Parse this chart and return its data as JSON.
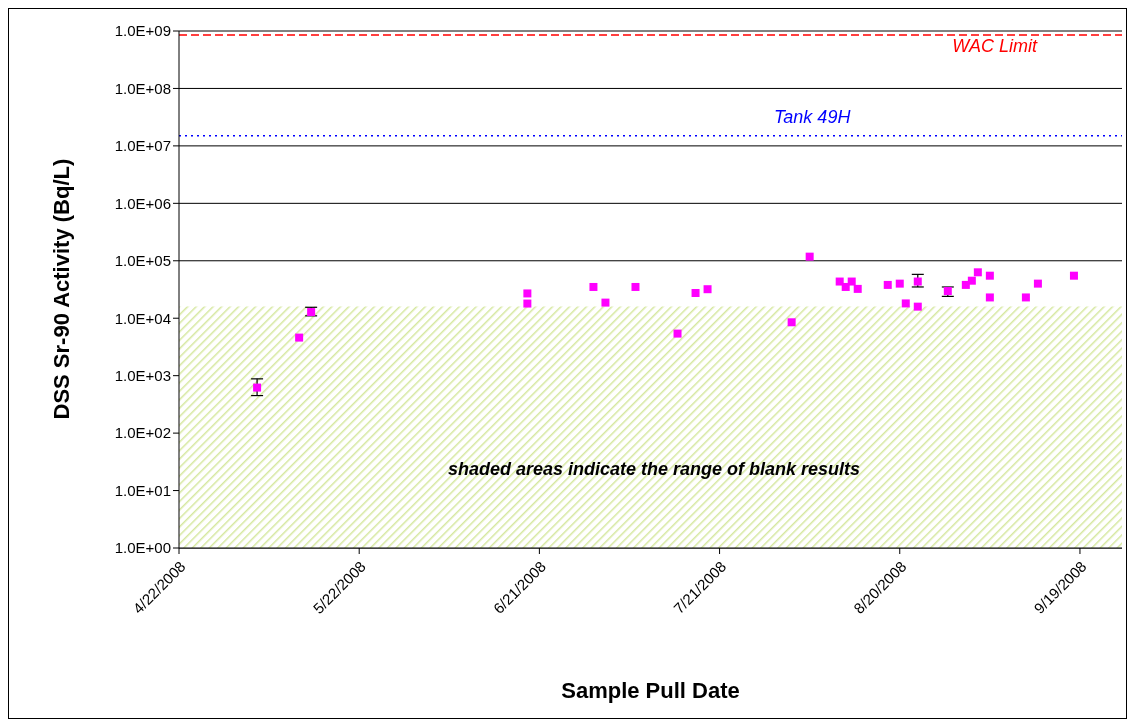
{
  "chart_data": {
    "type": "scatter",
    "xlabel": "Sample Pull Date",
    "ylabel": "DSS Sr-90 Activity (Bq/L)",
    "x": [
      "2008-05-05",
      "2008-05-12",
      "2008-05-14",
      "2008-06-19",
      "2008-06-19",
      "2008-06-30",
      "2008-07-02",
      "2008-07-07",
      "2008-07-14",
      "2008-07-17",
      "2008-07-19",
      "2008-08-02",
      "2008-08-05",
      "2008-08-10",
      "2008-08-11",
      "2008-08-12",
      "2008-08-13",
      "2008-08-18",
      "2008-08-20",
      "2008-08-21",
      "2008-08-23",
      "2008-08-23",
      "2008-08-28",
      "2008-08-31",
      "2008-09-01",
      "2008-09-02",
      "2008-09-04",
      "2008-09-04",
      "2008-09-10",
      "2008-09-12",
      "2008-09-18"
    ],
    "series": [
      {
        "color": "#ff00ff",
        "values": [
          620,
          4600,
          12800,
          27000,
          18000,
          35000,
          18700,
          35000,
          5400,
          27500,
          32000,
          8500,
          118000,
          43500,
          35000,
          43500,
          32400,
          38000,
          40000,
          18100,
          43500,
          15900,
          29700,
          38000,
          45000,
          63000,
          55000,
          23000,
          23000,
          40000,
          55000
        ],
        "errors": [
          [
            450,
            880
          ],
          null,
          [
            11000,
            15500
          ],
          null,
          null,
          null,
          null,
          null,
          null,
          null,
          null,
          null,
          null,
          null,
          null,
          null,
          null,
          null,
          null,
          null,
          [
            35000,
            58000
          ],
          null,
          [
            24000,
            35000
          ],
          null,
          null,
          null,
          null,
          null,
          null,
          null,
          null
        ]
      }
    ],
    "log": "y",
    "ylim": [
      1,
      1000000000
    ],
    "yticks": [
      {
        "value": 1,
        "label": "1.0E+00"
      },
      {
        "value": 10,
        "label": "1.0E+01"
      },
      {
        "value": 100,
        "label": "1.0E+02"
      },
      {
        "value": 1000,
        "label": "1.0E+03"
      },
      {
        "value": 10000,
        "label": "1.0E+04"
      },
      {
        "value": 100000,
        "label": "1.0E+05"
      },
      {
        "value": 1000000,
        "label": "1.0E+06"
      },
      {
        "value": 10000000,
        "label": "1.0E+07"
      },
      {
        "value": 100000000,
        "label": "1.0E+08"
      },
      {
        "value": 1000000000,
        "label": "1.0E+09"
      }
    ],
    "xlim": [
      "2008-04-22",
      "2008-09-26"
    ],
    "xticks": [
      {
        "value": "2008-04-22",
        "label": "4/22/2008"
      },
      {
        "value": "2008-05-22",
        "label": "5/22/2008"
      },
      {
        "value": "2008-06-21",
        "label": "6/21/2008"
      },
      {
        "value": "2008-07-21",
        "label": "7/21/2008"
      },
      {
        "value": "2008-08-20",
        "label": "8/20/2008"
      },
      {
        "value": "2008-09-19",
        "label": "9/19/2008"
      }
    ],
    "grid": "y",
    "marker": "square",
    "legend": false,
    "ref_lines": [
      {
        "axis": "y",
        "value": 850000000,
        "label": "WAC Limit",
        "color": "#ff0000",
        "line_style": "dashed"
      },
      {
        "axis": "y",
        "value": 15000000,
        "label": "Tank 49H",
        "color": "#0000ff",
        "line_style": "dotted"
      }
    ],
    "bands": [
      {
        "axis": "y",
        "from": 1,
        "to": 16000,
        "color": "#d6e8a0"
      }
    ],
    "annotations": [
      "shaded areas indicate the range of blank results"
    ]
  }
}
